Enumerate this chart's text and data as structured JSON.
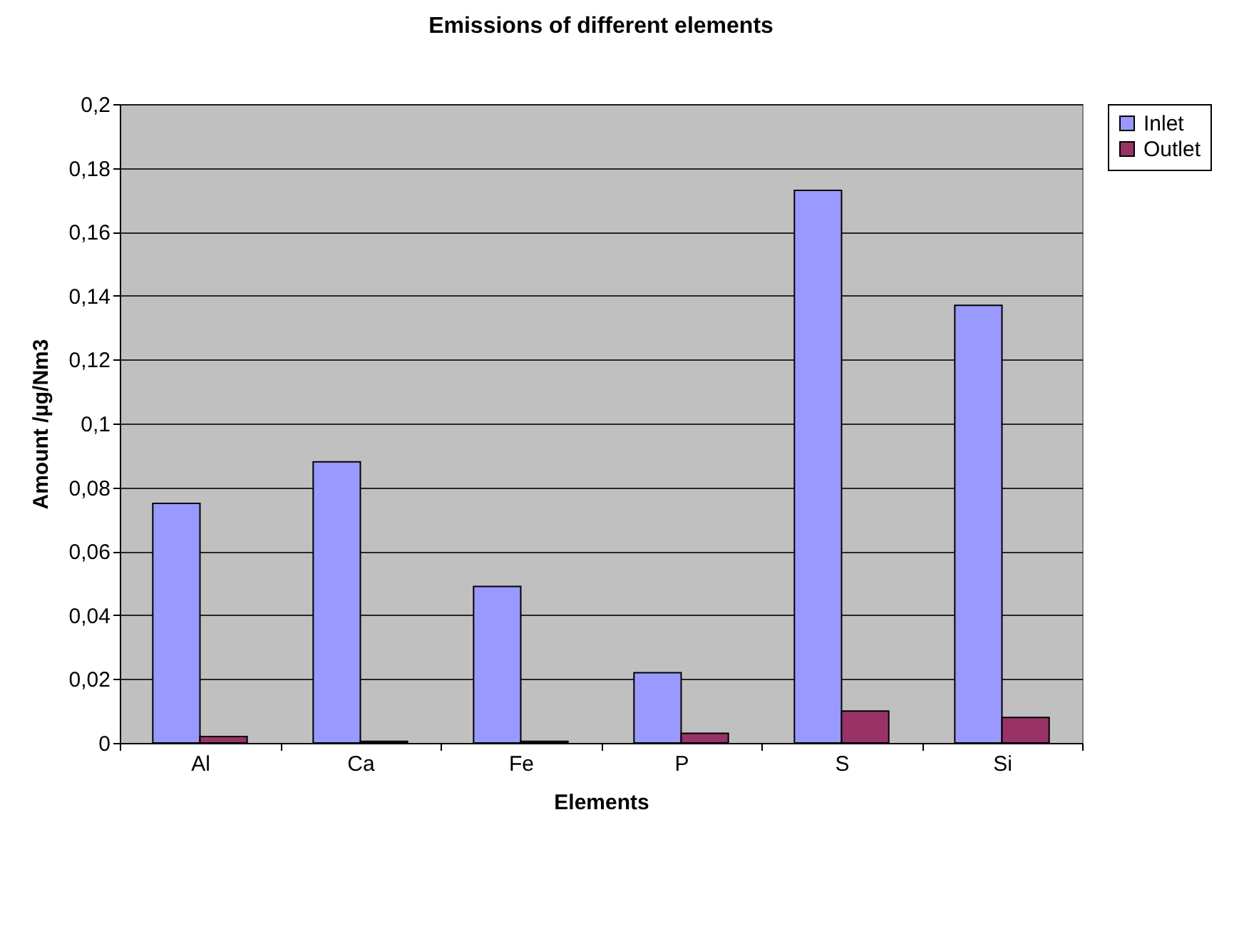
{
  "chart_data": {
    "type": "bar",
    "title": "Emissions of different elements",
    "xlabel": "Elements",
    "ylabel": "Amount /µg/Nm3",
    "categories": [
      "Al",
      "Ca",
      "Fe",
      "P",
      "S",
      "Si"
    ],
    "series": [
      {
        "name": "Inlet",
        "color": "#9999ff",
        "values": [
          0.075,
          0.088,
          0.049,
          0.022,
          0.173,
          0.137
        ]
      },
      {
        "name": "Outlet",
        "color": "#993366",
        "values": [
          0.002,
          0.0005,
          0.0005,
          0.003,
          0.01,
          0.008
        ]
      }
    ],
    "ylim": [
      0,
      0.2
    ],
    "yticks": [
      {
        "value": 0,
        "label": "0"
      },
      {
        "value": 0.02,
        "label": "0,02"
      },
      {
        "value": 0.04,
        "label": "0,04"
      },
      {
        "value": 0.06,
        "label": "0,06"
      },
      {
        "value": 0.08,
        "label": "0,08"
      },
      {
        "value": 0.1,
        "label": "0,1"
      },
      {
        "value": 0.12,
        "label": "0,12"
      },
      {
        "value": 0.14,
        "label": "0,14"
      },
      {
        "value": 0.16,
        "label": "0,16"
      },
      {
        "value": 0.18,
        "label": "0,18"
      },
      {
        "value": 0.2,
        "label": "0,2"
      }
    ],
    "grid": "y",
    "legend": "right"
  }
}
